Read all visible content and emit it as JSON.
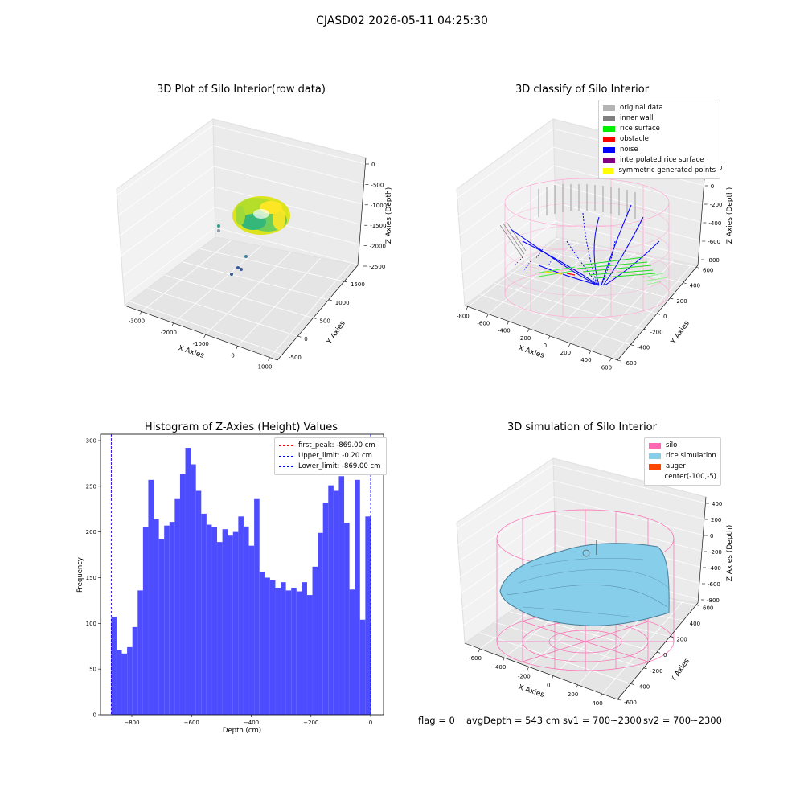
{
  "suptitle": "CJASD02 2026-05-11 04:25:30",
  "footer": {
    "flag": "flag = 0",
    "avg_depth": "avgDepth = 543 cm",
    "sv1": "sv1 = 700~2300",
    "sv2": "sv2 = 700~2300"
  },
  "chart_data": [
    {
      "type": "scatter",
      "subtype": "3d",
      "title": "3D Plot of Silo Interior(row data)",
      "xlabel": "X Axies",
      "ylabel": "Y Axies",
      "zlabel": "Z Axies (Depth)",
      "x_ticks": [
        "-3000",
        "-2000",
        "-1000",
        "0",
        "1000"
      ],
      "y_ticks": [
        "-500",
        "0",
        "500",
        "1000",
        "1500"
      ],
      "z_ticks": [
        "0",
        "-500",
        "-1000",
        "-1500",
        "-2000",
        "-2500"
      ],
      "colormap": "viridis"
    },
    {
      "type": "scatter",
      "subtype": "3d",
      "title": "3D classify of Silo Interior",
      "xlabel": "X Axies",
      "ylabel": "Y Axies",
      "zlabel": "Z Axies (Depth)",
      "x_ticks": [
        "-800",
        "-600",
        "-400",
        "-200",
        "0",
        "200",
        "400",
        "600"
      ],
      "y_ticks": [
        "-600",
        "-400",
        "-200",
        "0",
        "200",
        "400",
        "600"
      ],
      "z_ticks": [
        "200",
        "0",
        "-200",
        "-400",
        "-600",
        "-800"
      ],
      "legend": [
        {
          "label": "original data",
          "color": "#b4b4b4"
        },
        {
          "label": "inner wall",
          "color": "#808080"
        },
        {
          "label": "rice surface",
          "color": "#00ee00"
        },
        {
          "label": "obstacle",
          "color": "#ff0000"
        },
        {
          "label": "noise",
          "color": "#0000ff"
        },
        {
          "label": "interpolated rice surface",
          "color": "#800080"
        },
        {
          "label": "symmetric generated points",
          "color": "#ffff00"
        }
      ],
      "legend_position": "top-right"
    },
    {
      "type": "bar",
      "subtype": "histogram",
      "title": "Histogram of Z-Axies (Height) Values",
      "xlabel": "Depth (cm)",
      "ylabel": "Frequency",
      "x_ticks": [
        "−800",
        "−600",
        "−400",
        "−200",
        "0"
      ],
      "y_ticks": [
        "0",
        "50",
        "100",
        "150",
        "200",
        "250",
        "300"
      ],
      "xlim": [
        -905,
        43
      ],
      "ylim": [
        0,
        307
      ],
      "bin_start": -869,
      "bin_end": -0.2,
      "values": [
        107,
        71,
        67,
        74,
        96,
        136,
        205,
        257,
        214,
        192,
        207,
        211,
        236,
        263,
        292,
        274,
        245,
        220,
        208,
        205,
        189,
        203,
        196,
        200,
        217,
        206,
        185,
        236,
        156,
        150,
        147,
        139,
        145,
        136,
        139,
        135,
        145,
        131,
        162,
        199,
        232,
        251,
        245,
        261,
        210,
        137,
        257,
        104,
        217
      ],
      "bar_color": "#4d4dff",
      "vlines": [
        {
          "label": "first_peak: -869.00 cm",
          "x": -869.0,
          "color": "#ff0000"
        },
        {
          "label": "Upper_limit: -0.20 cm",
          "x": -0.2,
          "color": "#0000ff"
        },
        {
          "label": "Lower_limit: -869.00 cm",
          "x": -869.0,
          "color": "#0000ff"
        }
      ],
      "legend_position": "top-right"
    },
    {
      "type": "area",
      "subtype": "3d-surface",
      "title": "3D simulation of Silo Interior",
      "xlabel": "X Axies",
      "ylabel": "Y Axies",
      "zlabel": "Z Axies (Depth)",
      "x_ticks": [
        "-600",
        "-400",
        "-200",
        "0",
        "200",
        "400"
      ],
      "y_ticks": [
        "-600",
        "-400",
        "-200",
        "0",
        "200",
        "400",
        "600"
      ],
      "z_ticks": [
        "400",
        "200",
        "0",
        "-200",
        "-400",
        "-600",
        "-800"
      ],
      "legend": [
        {
          "label": "silo",
          "color": "#ff69b4"
        },
        {
          "label": "rice simulation",
          "color": "#87ceeb"
        },
        {
          "label": "auger",
          "color": "#ff4500"
        },
        {
          "label": "center(-100,-5)",
          "color": ""
        }
      ],
      "legend_position": "top-right"
    }
  ]
}
